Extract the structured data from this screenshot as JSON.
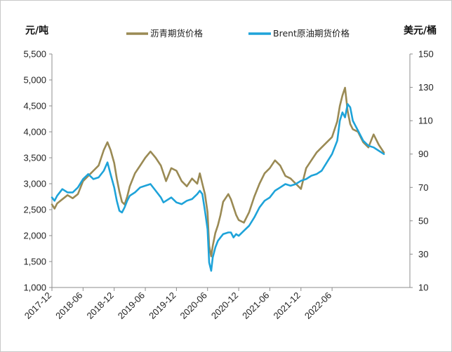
{
  "chart_data": {
    "type": "line",
    "title": "",
    "y_left_label": "元/吨",
    "y_right_label": "美元/桶",
    "y_left_ticks": [
      "1,000",
      "1,500",
      "2,000",
      "2,500",
      "3,000",
      "3,500",
      "4,000",
      "4,500",
      "5,000",
      "5,500"
    ],
    "y_right_ticks": [
      "10",
      "30",
      "50",
      "70",
      "90",
      "110",
      "130",
      "150"
    ],
    "y_left_range": [
      1000,
      5500
    ],
    "y_right_range": [
      10,
      150
    ],
    "x_ticks": [
      "2017-12",
      "2018-06",
      "2018-12",
      "2019-06",
      "2019-12",
      "2020-06",
      "2020-12",
      "2021-06",
      "2021-12",
      "2022-06"
    ],
    "x_range_months": [
      0,
      69
    ],
    "series": [
      {
        "name": "沥青期货价格",
        "axis": "left",
        "color": "#9a8a54",
        "points": [
          [
            0,
            2600
          ],
          [
            0.5,
            2520
          ],
          [
            1,
            2620
          ],
          [
            2,
            2700
          ],
          [
            3,
            2780
          ],
          [
            4,
            2720
          ],
          [
            5,
            2800
          ],
          [
            6,
            3050
          ],
          [
            7,
            3150
          ],
          [
            8,
            3250
          ],
          [
            9,
            3350
          ],
          [
            10,
            3650
          ],
          [
            10.7,
            3800
          ],
          [
            11.3,
            3650
          ],
          [
            12,
            3400
          ],
          [
            12.5,
            3100
          ],
          [
            13,
            2850
          ],
          [
            13.5,
            2650
          ],
          [
            14,
            2600
          ],
          [
            14.5,
            2750
          ],
          [
            15,
            2950
          ],
          [
            16,
            3200
          ],
          [
            17,
            3350
          ],
          [
            18,
            3500
          ],
          [
            19,
            3620
          ],
          [
            20,
            3500
          ],
          [
            21,
            3350
          ],
          [
            21.5,
            3200
          ],
          [
            22,
            3050
          ],
          [
            23,
            3300
          ],
          [
            24,
            3250
          ],
          [
            25,
            3050
          ],
          [
            26,
            2950
          ],
          [
            27,
            3100
          ],
          [
            28,
            3000
          ],
          [
            28.5,
            3200
          ],
          [
            29,
            3000
          ],
          [
            29.5,
            2800
          ],
          [
            30,
            2450
          ],
          [
            30.3,
            1800
          ],
          [
            30.7,
            1600
          ],
          [
            31,
            1800
          ],
          [
            31.5,
            2050
          ],
          [
            32,
            2200
          ],
          [
            32.5,
            2400
          ],
          [
            33,
            2650
          ],
          [
            34,
            2800
          ],
          [
            34.5,
            2700
          ],
          [
            35,
            2550
          ],
          [
            35.5,
            2400
          ],
          [
            36,
            2300
          ],
          [
            37,
            2250
          ],
          [
            38,
            2450
          ],
          [
            39,
            2750
          ],
          [
            40,
            3000
          ],
          [
            41,
            3200
          ],
          [
            42,
            3300
          ],
          [
            43,
            3450
          ],
          [
            44,
            3350
          ],
          [
            45,
            3150
          ],
          [
            46,
            3100
          ],
          [
            47,
            3000
          ],
          [
            48,
            2900
          ],
          [
            49,
            3300
          ],
          [
            50,
            3450
          ],
          [
            51,
            3600
          ],
          [
            52,
            3700
          ],
          [
            53,
            3800
          ],
          [
            54,
            3900
          ],
          [
            55,
            4200
          ],
          [
            55.5,
            4500
          ],
          [
            56,
            4700
          ],
          [
            56.5,
            4850
          ],
          [
            57,
            4400
          ],
          [
            57.5,
            4150
          ],
          [
            58,
            4050
          ],
          [
            59,
            4000
          ],
          [
            60,
            3800
          ],
          [
            61,
            3700
          ],
          [
            62,
            3950
          ],
          [
            63,
            3750
          ],
          [
            64,
            3600
          ]
        ]
      },
      {
        "name": "Brent原油期货价格",
        "axis": "right",
        "color": "#1ea3d9",
        "points": [
          [
            0,
            64
          ],
          [
            0.5,
            62
          ],
          [
            1,
            65
          ],
          [
            2,
            69
          ],
          [
            3,
            67
          ],
          [
            4,
            67
          ],
          [
            5,
            70
          ],
          [
            6,
            75
          ],
          [
            7,
            78
          ],
          [
            8,
            75
          ],
          [
            9,
            76
          ],
          [
            10,
            80
          ],
          [
            10.7,
            85
          ],
          [
            11.3,
            78
          ],
          [
            12,
            70
          ],
          [
            12.5,
            62
          ],
          [
            13,
            56
          ],
          [
            13.5,
            55
          ],
          [
            14,
            58
          ],
          [
            14.5,
            62
          ],
          [
            15,
            65
          ],
          [
            16,
            67
          ],
          [
            17,
            70
          ],
          [
            18,
            71
          ],
          [
            19,
            72
          ],
          [
            20,
            68
          ],
          [
            21,
            64
          ],
          [
            21.5,
            61
          ],
          [
            22,
            62
          ],
          [
            23,
            64
          ],
          [
            24,
            61
          ],
          [
            25,
            60
          ],
          [
            26,
            62
          ],
          [
            27,
            63
          ],
          [
            28,
            66
          ],
          [
            28.5,
            68
          ],
          [
            29,
            66
          ],
          [
            29.5,
            56
          ],
          [
            30,
            45
          ],
          [
            30.3,
            25
          ],
          [
            30.7,
            20
          ],
          [
            31,
            28
          ],
          [
            31.5,
            34
          ],
          [
            32,
            38
          ],
          [
            32.5,
            40
          ],
          [
            33,
            42
          ],
          [
            34,
            43
          ],
          [
            34.5,
            43
          ],
          [
            35,
            40
          ],
          [
            35.5,
            42
          ],
          [
            36,
            41
          ],
          [
            37,
            44
          ],
          [
            38,
            47
          ],
          [
            39,
            52
          ],
          [
            40,
            58
          ],
          [
            41,
            62
          ],
          [
            42,
            64
          ],
          [
            43,
            68
          ],
          [
            44,
            70
          ],
          [
            45,
            72
          ],
          [
            46,
            71
          ],
          [
            47,
            72
          ],
          [
            48,
            74
          ],
          [
            49,
            75
          ],
          [
            50,
            77
          ],
          [
            51,
            78
          ],
          [
            52,
            80
          ],
          [
            53,
            85
          ],
          [
            54,
            90
          ],
          [
            55,
            98
          ],
          [
            55.5,
            110
          ],
          [
            56,
            115
          ],
          [
            56.5,
            112
          ],
          [
            57,
            120
          ],
          [
            57.5,
            118
          ],
          [
            58,
            110
          ],
          [
            59,
            104
          ],
          [
            60,
            98
          ],
          [
            61,
            95
          ],
          [
            62,
            94
          ],
          [
            63,
            92
          ],
          [
            64,
            90
          ]
        ]
      }
    ]
  }
}
